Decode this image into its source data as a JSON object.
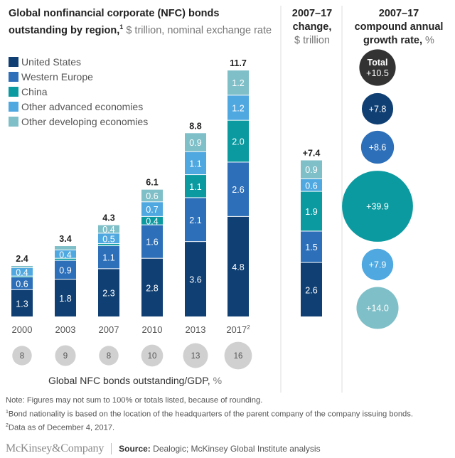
{
  "title": {
    "main": "Global nonfinancial corporate (NFC) bonds outstanding by region,",
    "footnote_ref": "1",
    "unit": " $ trillion, nominal exchange rate"
  },
  "change_header": {
    "line1": "2007–17",
    "line2": "change,",
    "unit": "$ trillion"
  },
  "cagr_header": {
    "line1": "2007–17",
    "line2": "compound annual",
    "line3": "growth rate,",
    "unit": " %"
  },
  "gdp_label": {
    "text": "Global NFC bonds outstanding/GDP,",
    "unit": " %"
  },
  "notes": {
    "note": "Note: Figures may not sum to 100% or totals listed, because of rounding.",
    "fn1_mark": "1",
    "fn1": "Bond nationality is based on the location of the headquarters of the parent company of the company issuing bonds.",
    "fn2_mark": "2",
    "fn2": "Data as of December 4, 2017."
  },
  "footer": {
    "brand": "McKinsey&Company",
    "source_label": "Source:",
    "source_text": " Dealogic; McKinsey Global Institute analysis"
  },
  "chart_data": {
    "type": "bar",
    "stacked": true,
    "title": "Global nonfinancial corporate (NFC) bonds outstanding by region, $ trillion, nominal exchange rate",
    "categories": [
      "2000",
      "2003",
      "2007",
      "2010",
      "2013",
      "2017"
    ],
    "category_superscripts": [
      "",
      "",
      "",
      "",
      "",
      "2"
    ],
    "legend_position": "top-left",
    "series": [
      {
        "name": "United States",
        "color": "#0f3f73",
        "values": [
          1.3,
          1.8,
          2.3,
          2.8,
          3.6,
          4.8
        ]
      },
      {
        "name": "Western Europe",
        "color": "#2d6fb8",
        "values": [
          0.6,
          0.9,
          1.1,
          1.6,
          2.1,
          2.6
        ]
      },
      {
        "name": "China",
        "color": "#0a9aa0",
        "values": [
          0.05,
          0.1,
          0.1,
          0.4,
          1.1,
          2.0
        ]
      },
      {
        "name": "Other advanced economies",
        "color": "#4fa8e0",
        "values": [
          0.4,
          0.4,
          0.5,
          0.7,
          1.1,
          1.2
        ]
      },
      {
        "name": "Other developing economies",
        "color": "#7fbfc8",
        "values": [
          0.1,
          0.2,
          0.4,
          0.6,
          0.9,
          1.2
        ]
      }
    ],
    "segment_labels": [
      [
        "1.3",
        "0.6",
        "",
        "0.4",
        ""
      ],
      [
        "1.8",
        "0.9",
        "",
        "0.4",
        ""
      ],
      [
        "2.3",
        "1.1",
        "",
        "0.5",
        "0.4"
      ],
      [
        "2.8",
        "1.6",
        "0.4",
        "0.7",
        "0.6"
      ],
      [
        "3.6",
        "2.1",
        "1.1",
        "1.1",
        "0.9"
      ],
      [
        "4.8",
        "2.6",
        "2.0",
        "1.2",
        "1.2"
      ]
    ],
    "totals": [
      "2.4",
      "3.4",
      "4.3",
      "6.1",
      "8.8",
      "11.7"
    ],
    "gdp_ratio": {
      "label": "Global NFC bonds outstanding/GDP, %",
      "values": [
        8,
        9,
        8,
        10,
        13,
        16
      ],
      "color": "#d0d0d0"
    },
    "change_2007_17": {
      "total_label": "+7.4",
      "total": 7.4,
      "values": [
        2.6,
        1.5,
        1.9,
        0.6,
        0.9
      ],
      "labels": [
        "2.6",
        "1.5",
        "1.9",
        "0.6",
        "0.9"
      ]
    },
    "cagr_2007_17": {
      "unit": "%",
      "items": [
        {
          "name": "Total",
          "value": 10.5,
          "label": "+10.5",
          "color": "#333333"
        },
        {
          "name": "United States",
          "value": 7.8,
          "label": "+7.8",
          "color": "#0f3f73"
        },
        {
          "name": "Western Europe",
          "value": 8.6,
          "label": "+8.6",
          "color": "#2d6fb8"
        },
        {
          "name": "China",
          "value": 39.9,
          "label": "+39.9",
          "color": "#0a9aa0"
        },
        {
          "name": "Other advanced economies",
          "value": 7.9,
          "label": "+7.9",
          "color": "#4fa8e0"
        },
        {
          "name": "Other developing economies",
          "value": 14.0,
          "label": "+14.0",
          "color": "#7fbfc8"
        }
      ]
    },
    "xlabel": "",
    "ylabel": "$ trillion",
    "ylim": [
      0,
      11.7
    ],
    "grid": false
  }
}
